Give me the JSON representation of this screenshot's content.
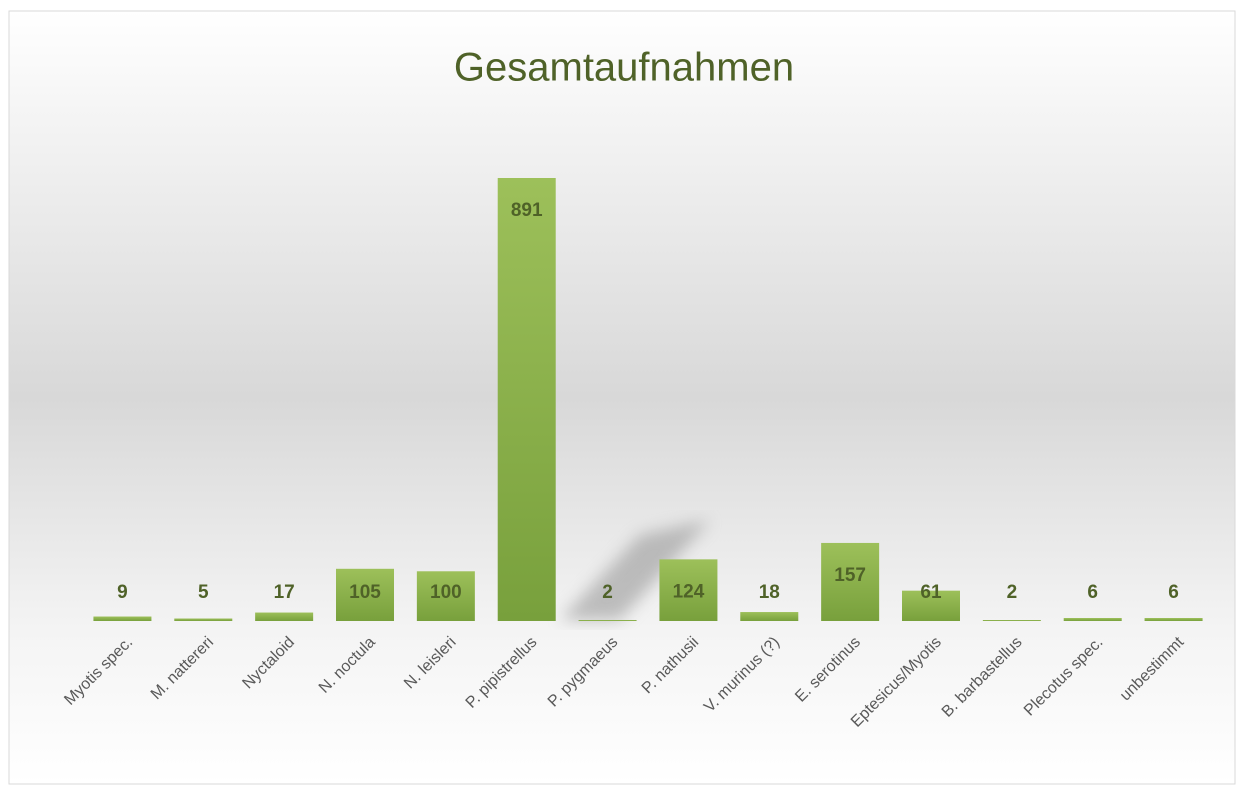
{
  "chart_data": {
    "type": "bar",
    "title": "Gesamtaufnahmen",
    "categories": [
      "Myotis spec.",
      "M. nattereri",
      "Nyctaloid",
      "N. noctula",
      "N. leisleri",
      "P. pipistrellus",
      "P. pygmaeus",
      "P. nathusii",
      "V. murinus (?)",
      "E. serotinus",
      "Eptesicus/Myotis",
      "B. barbastellus",
      "Plecotus spec.",
      "unbestimmt"
    ],
    "values": [
      9,
      5,
      17,
      105,
      100,
      891,
      2,
      124,
      18,
      157,
      61,
      2,
      6,
      6
    ],
    "color": "#8cb04a"
  }
}
